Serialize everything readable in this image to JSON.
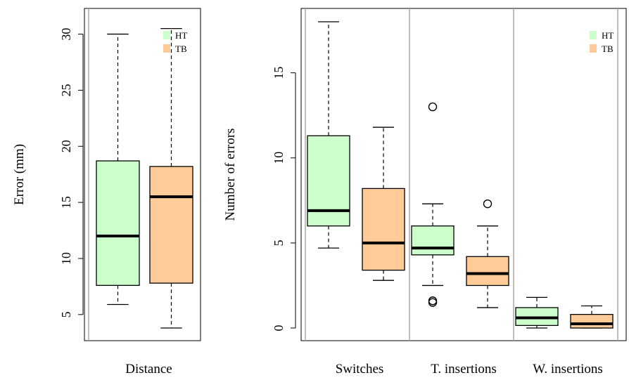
{
  "colors": {
    "HT": "#ccffcc",
    "TB": "#ffcc99",
    "divider": "#aaaaaa"
  },
  "chart_data": [
    {
      "type": "box",
      "ylabel": "Error (mm)",
      "yticks": [
        5,
        10,
        15,
        20,
        25,
        30
      ],
      "ylim": [
        3.8,
        30.6
      ],
      "legend": {
        "placement": "top-right",
        "entries": [
          "HT",
          "TB"
        ]
      },
      "groups": [
        {
          "label": "Distance",
          "boxes": [
            {
              "series": "HT",
              "whisker_low": 5.9,
              "q1": 7.6,
              "median": 12.0,
              "q3": 18.7,
              "whisker_high": 30.0,
              "outliers": []
            },
            {
              "series": "TB",
              "whisker_low": 3.8,
              "q1": 7.8,
              "median": 15.5,
              "q3": 18.2,
              "whisker_high": 30.5,
              "outliers": []
            }
          ]
        }
      ]
    },
    {
      "type": "box",
      "ylabel": "Number of errors",
      "yticks": [
        0,
        5,
        10,
        15
      ],
      "ylim": [
        0,
        18
      ],
      "legend": {
        "placement": "top-right",
        "entries": [
          "HT",
          "TB"
        ]
      },
      "groups": [
        {
          "label": "Switches",
          "boxes": [
            {
              "series": "HT",
              "whisker_low": 4.7,
              "q1": 6.0,
              "median": 6.9,
              "q3": 11.3,
              "whisker_high": 18.0,
              "outliers": []
            },
            {
              "series": "TB",
              "whisker_low": 2.8,
              "q1": 3.4,
              "median": 5.0,
              "q3": 8.2,
              "whisker_high": 11.8,
              "outliers": []
            }
          ]
        },
        {
          "label": "T. insertions",
          "boxes": [
            {
              "series": "HT",
              "whisker_low": 2.5,
              "q1": 4.3,
              "median": 4.7,
              "q3": 6.0,
              "whisker_high": 7.3,
              "outliers": [
                13.0,
                1.6,
                1.5
              ]
            },
            {
              "series": "TB",
              "whisker_low": 1.2,
              "q1": 2.5,
              "median": 3.2,
              "q3": 4.2,
              "whisker_high": 6.0,
              "outliers": [
                7.3
              ]
            }
          ]
        },
        {
          "label": "W. insertions",
          "boxes": [
            {
              "series": "HT",
              "whisker_low": 0.0,
              "q1": 0.15,
              "median": 0.6,
              "q3": 1.2,
              "whisker_high": 1.8,
              "outliers": []
            },
            {
              "series": "TB",
              "whisker_low": 0.0,
              "q1": 0.0,
              "median": 0.25,
              "q3": 0.8,
              "whisker_high": 1.3,
              "outliers": []
            }
          ]
        }
      ]
    }
  ]
}
